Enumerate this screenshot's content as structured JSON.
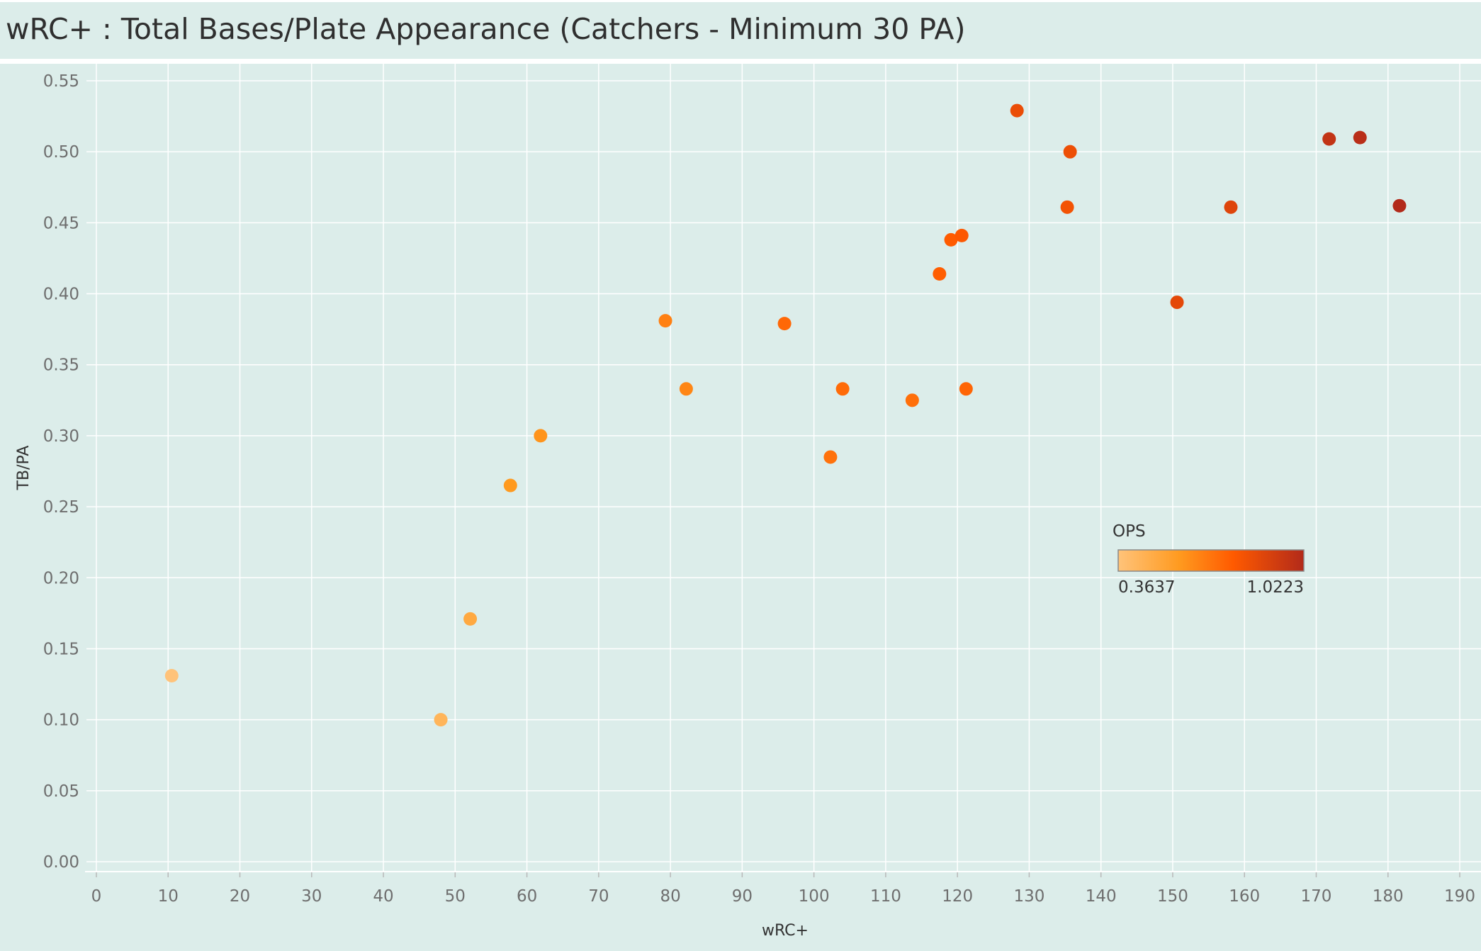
{
  "title": "wRC+ : Total Bases/Plate Appearance (Catchers - Minimum 30 PA)",
  "colors": {
    "background": "#dcedea",
    "gridline": "#ffffff",
    "ops_low": "#ffc37a",
    "ops_mid1": "#ff9a1f",
    "ops_mid2": "#ff5a00",
    "ops_high": "#b22a1a"
  },
  "chart_data": {
    "type": "scatter",
    "xlabel": "wRC+",
    "ylabel": "TB/PA",
    "xlim": [
      0,
      190
    ],
    "ylim": [
      0,
      0.55
    ],
    "x_ticks": [
      "0",
      "10",
      "20",
      "30",
      "40",
      "50",
      "60",
      "70",
      "80",
      "90",
      "100",
      "110",
      "120",
      "130",
      "140",
      "150",
      "160",
      "170",
      "180",
      "190"
    ],
    "y_ticks": [
      "0.00",
      "0.05",
      "0.10",
      "0.15",
      "0.20",
      "0.25",
      "0.30",
      "0.35",
      "0.40",
      "0.45",
      "0.50",
      "0.55"
    ],
    "grid": true,
    "color_legend": {
      "title": "OPS",
      "min_label": "0.3637",
      "max_label": "1.0223",
      "min": 0.3637,
      "max": 1.0223,
      "placement": "center-right"
    },
    "points": [
      {
        "x": 10.5,
        "y": 0.131,
        "ops": 0.3637
      },
      {
        "x": 48.0,
        "y": 0.1,
        "ops": 0.44
      },
      {
        "x": 52.1,
        "y": 0.171,
        "ops": 0.5
      },
      {
        "x": 57.7,
        "y": 0.265,
        "ops": 0.58
      },
      {
        "x": 61.9,
        "y": 0.3,
        "ops": 0.6
      },
      {
        "x": 79.3,
        "y": 0.381,
        "ops": 0.66
      },
      {
        "x": 82.2,
        "y": 0.333,
        "ops": 0.64
      },
      {
        "x": 95.9,
        "y": 0.379,
        "ops": 0.73
      },
      {
        "x": 102.3,
        "y": 0.285,
        "ops": 0.7
      },
      {
        "x": 104.0,
        "y": 0.333,
        "ops": 0.72
      },
      {
        "x": 113.7,
        "y": 0.325,
        "ops": 0.71
      },
      {
        "x": 117.5,
        "y": 0.414,
        "ops": 0.76
      },
      {
        "x": 119.1,
        "y": 0.438,
        "ops": 0.77
      },
      {
        "x": 120.6,
        "y": 0.441,
        "ops": 0.78
      },
      {
        "x": 121.2,
        "y": 0.333,
        "ops": 0.74
      },
      {
        "x": 128.3,
        "y": 0.529,
        "ops": 0.84
      },
      {
        "x": 135.3,
        "y": 0.461,
        "ops": 0.81
      },
      {
        "x": 135.7,
        "y": 0.5,
        "ops": 0.83
      },
      {
        "x": 150.6,
        "y": 0.394,
        "ops": 0.86
      },
      {
        "x": 158.1,
        "y": 0.461,
        "ops": 0.88
      },
      {
        "x": 171.8,
        "y": 0.509,
        "ops": 0.97
      },
      {
        "x": 176.1,
        "y": 0.51,
        "ops": 1.0
      },
      {
        "x": 181.6,
        "y": 0.462,
        "ops": 1.0223
      }
    ]
  }
}
